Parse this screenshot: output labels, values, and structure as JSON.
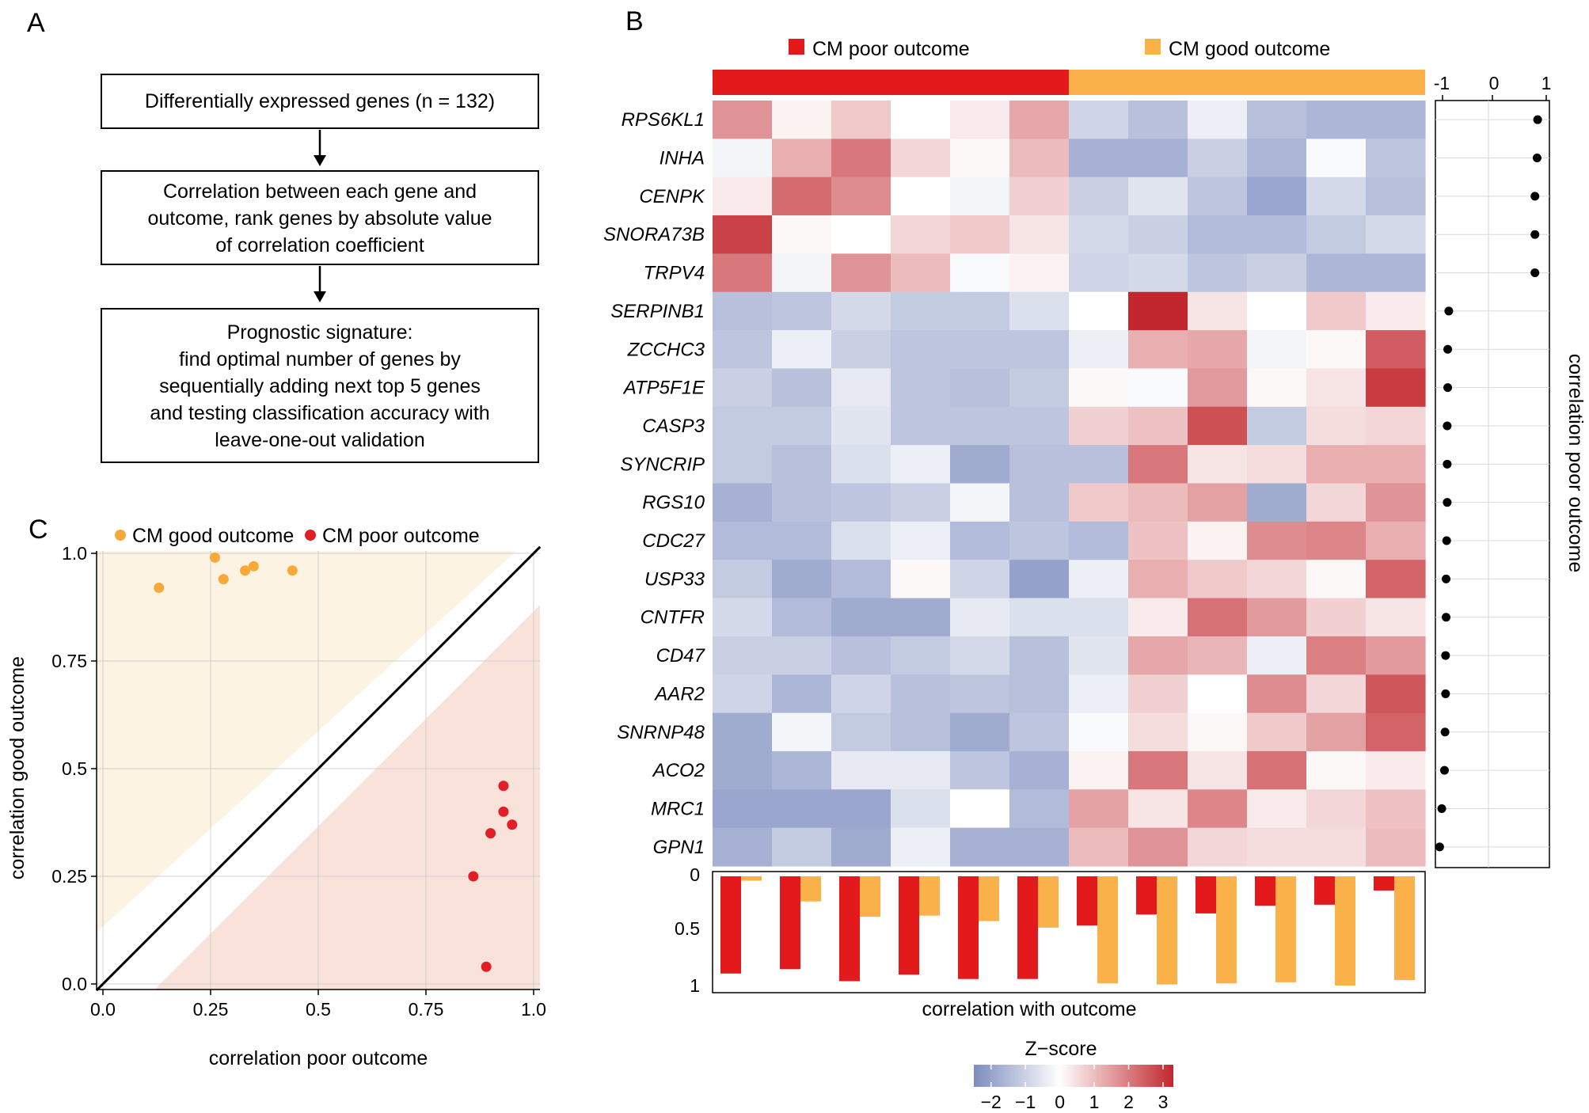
{
  "panel_labels": {
    "a": "A",
    "b": "B",
    "c": "C"
  },
  "flowchart": {
    "steps": [
      {
        "lines": [
          "Differentially expressed genes (n = 132)"
        ]
      },
      {
        "lines": [
          "Correlation between each gene and",
          "outcome, rank genes by absolute value",
          "of correlation coefficient"
        ]
      },
      {
        "lines": [
          "Prognostic signature:",
          "find optimal number of genes by",
          "sequentially adding next top 5 genes",
          "and testing classification accuracy with",
          "leave-one-out validation"
        ]
      }
    ]
  },
  "colors": {
    "poor": "#e31a1c",
    "good": "#fbb14a",
    "poor_dot": "#e11e26",
    "good_dot": "#f9a93a",
    "bg_good": "#fdf3e3",
    "bg_poor": "#f9e2d9",
    "z_low": "#7c8cbe",
    "z_mid": "#ffffff",
    "z_high": "#c1272d"
  },
  "chart_data": [
    {
      "id": "heatmap",
      "type": "heatmap",
      "groups": [
        {
          "label": "CM poor outcome",
          "columns": 6
        },
        {
          "label": "CM good outcome",
          "columns": 6
        }
      ],
      "genes": [
        "RPS6KL1",
        "INHA",
        "CENPK",
        "SNORA73B",
        "TRPV4",
        "SERPINB1",
        "ZCCHC3",
        "ATP5F1E",
        "CASP3",
        "SYNCRIP",
        "RGS10",
        "CDC27",
        "USP33",
        "CNTFR",
        "CD47",
        "AAR2",
        "SNRNP48",
        "ACO2",
        "MRC1",
        "GPN1"
      ],
      "z": [
        [
          1.6,
          0.2,
          0.8,
          0.0,
          0.3,
          1.3,
          -0.8,
          -1.2,
          -0.3,
          -1.2,
          -1.4,
          -1.4
        ],
        [
          -0.2,
          1.2,
          2.0,
          0.6,
          0.1,
          1.0,
          -1.5,
          -1.5,
          -0.9,
          -1.4,
          -0.1,
          -1.1
        ],
        [
          0.3,
          2.2,
          1.7,
          0.0,
          -0.2,
          0.7,
          -0.9,
          -0.5,
          -1.1,
          -1.7,
          -0.7,
          -1.2
        ],
        [
          2.8,
          0.1,
          0.0,
          0.6,
          0.8,
          0.4,
          -0.7,
          -0.9,
          -1.3,
          -1.3,
          -1.0,
          -0.7
        ],
        [
          2.0,
          -0.2,
          1.6,
          1.0,
          -0.1,
          0.2,
          -0.8,
          -0.7,
          -1.1,
          -0.9,
          -1.4,
          -1.4
        ],
        [
          -1.2,
          -1.1,
          -0.7,
          -1.0,
          -1.0,
          -0.6,
          0.0,
          3.2,
          0.4,
          0.0,
          0.8,
          0.3
        ],
        [
          -1.1,
          -0.3,
          -0.9,
          -1.1,
          -1.1,
          -1.1,
          -0.3,
          1.2,
          1.3,
          -0.2,
          0.1,
          2.4
        ],
        [
          -0.9,
          -1.2,
          -0.4,
          -1.1,
          -1.2,
          -1.0,
          0.1,
          -0.1,
          1.5,
          0.1,
          0.4,
          2.9
        ],
        [
          -1.0,
          -1.0,
          -0.5,
          -1.1,
          -1.1,
          -1.1,
          0.7,
          0.9,
          2.6,
          -1.0,
          0.5,
          0.6
        ],
        [
          -1.0,
          -1.2,
          -0.6,
          -0.3,
          -1.6,
          -1.2,
          -1.2,
          2.0,
          0.4,
          0.5,
          1.2,
          1.2
        ],
        [
          -1.5,
          -1.2,
          -1.1,
          -0.9,
          -0.2,
          -1.2,
          0.8,
          1.0,
          1.4,
          -1.6,
          0.6,
          1.6
        ],
        [
          -1.3,
          -1.3,
          -0.6,
          -0.3,
          -1.3,
          -1.1,
          -1.3,
          0.9,
          0.2,
          1.7,
          1.8,
          1.2
        ],
        [
          -1.0,
          -1.6,
          -1.3,
          0.1,
          -0.8,
          -1.8,
          -0.3,
          1.2,
          0.8,
          0.6,
          0.1,
          2.3
        ],
        [
          -0.7,
          -1.3,
          -1.6,
          -1.6,
          -0.4,
          -0.6,
          -0.6,
          0.3,
          2.1,
          1.5,
          0.7,
          0.4
        ],
        [
          -0.9,
          -0.9,
          -1.2,
          -1.0,
          -0.7,
          -1.2,
          -0.5,
          1.3,
          1.1,
          -0.3,
          1.9,
          1.5
        ],
        [
          -0.8,
          -1.4,
          -0.8,
          -1.2,
          -1.1,
          -1.2,
          -0.3,
          0.7,
          0.0,
          1.7,
          0.6,
          2.5
        ],
        [
          -1.6,
          -0.2,
          -1.0,
          -1.2,
          -1.6,
          -1.1,
          -0.1,
          0.5,
          0.1,
          0.8,
          1.4,
          2.3
        ],
        [
          -1.6,
          -1.4,
          -0.4,
          -0.4,
          -1.1,
          -1.5,
          0.2,
          2.0,
          0.4,
          2.1,
          0.1,
          0.3
        ],
        [
          -1.7,
          -1.7,
          -1.7,
          -0.6,
          0.0,
          -1.3,
          1.4,
          0.4,
          1.8,
          0.3,
          0.6,
          0.9
        ],
        [
          -1.5,
          -1.0,
          -1.6,
          -0.3,
          -1.5,
          -1.5,
          1.0,
          1.6,
          0.6,
          0.5,
          0.5,
          1.0
        ]
      ]
    },
    {
      "id": "gene-correlation",
      "type": "scatter",
      "title": "correlation poor outcome",
      "xlim": [
        -1,
        1
      ],
      "xticks": [
        "-1",
        "0",
        "1"
      ],
      "values": [
        0.84,
        0.83,
        0.79,
        0.79,
        0.79,
        -0.81,
        -0.83,
        -0.83,
        -0.84,
        -0.84,
        -0.84,
        -0.85,
        -0.86,
        -0.86,
        -0.87,
        -0.87,
        -0.88,
        -0.89,
        -0.94,
        -0.98
      ]
    },
    {
      "id": "sample-correlation",
      "type": "bar",
      "xlabel": "correlation with outcome",
      "ylim": [
        0,
        1
      ],
      "yticks": [
        "0",
        "0.5",
        "1"
      ],
      "samples": 12,
      "series": [
        {
          "name": "correlation poor outcome",
          "values": [
            0.89,
            0.85,
            0.96,
            0.9,
            0.94,
            0.94,
            0.45,
            0.35,
            0.34,
            0.27,
            0.26,
            0.13
          ]
        },
        {
          "name": "correlation good outcome",
          "values": [
            0.04,
            0.23,
            0.37,
            0.36,
            0.41,
            0.47,
            0.98,
            0.99,
            0.98,
            0.97,
            1.0,
            0.95
          ]
        }
      ]
    },
    {
      "id": "zscore-scale",
      "type": "heatmap",
      "title": "Z−score",
      "range": [
        -2.5,
        3.3
      ],
      "ticks": [
        -2,
        -1,
        0,
        1,
        2,
        3
      ],
      "tick_labels": [
        "−2",
        "−1",
        "0",
        "1",
        "2",
        "3"
      ]
    },
    {
      "id": "outcome-scatter",
      "type": "scatter",
      "xlabel": "correlation poor outcome",
      "ylabel": "correlation good outcome",
      "xlim": [
        0,
        1
      ],
      "ylim": [
        0,
        1
      ],
      "xticks": [
        "0.0",
        "0.25",
        "0.5",
        "0.75",
        "1.0"
      ],
      "yticks": [
        "0.0",
        "0.25",
        "0.5",
        "0.75",
        "1.0"
      ],
      "legend": [
        {
          "label": "CM good outcome"
        },
        {
          "label": "CM poor outcome"
        }
      ],
      "series": [
        {
          "name": "CM good outcome",
          "x": [
            0.13,
            0.26,
            0.28,
            0.33,
            0.35,
            0.44
          ],
          "y": [
            0.92,
            0.99,
            0.94,
            0.96,
            0.97,
            0.96
          ]
        },
        {
          "name": "CM poor outcome",
          "x": [
            0.86,
            0.89,
            0.9,
            0.93,
            0.93,
            0.95
          ],
          "y": [
            0.25,
            0.04,
            0.35,
            0.46,
            0.4,
            0.37
          ]
        }
      ]
    }
  ]
}
